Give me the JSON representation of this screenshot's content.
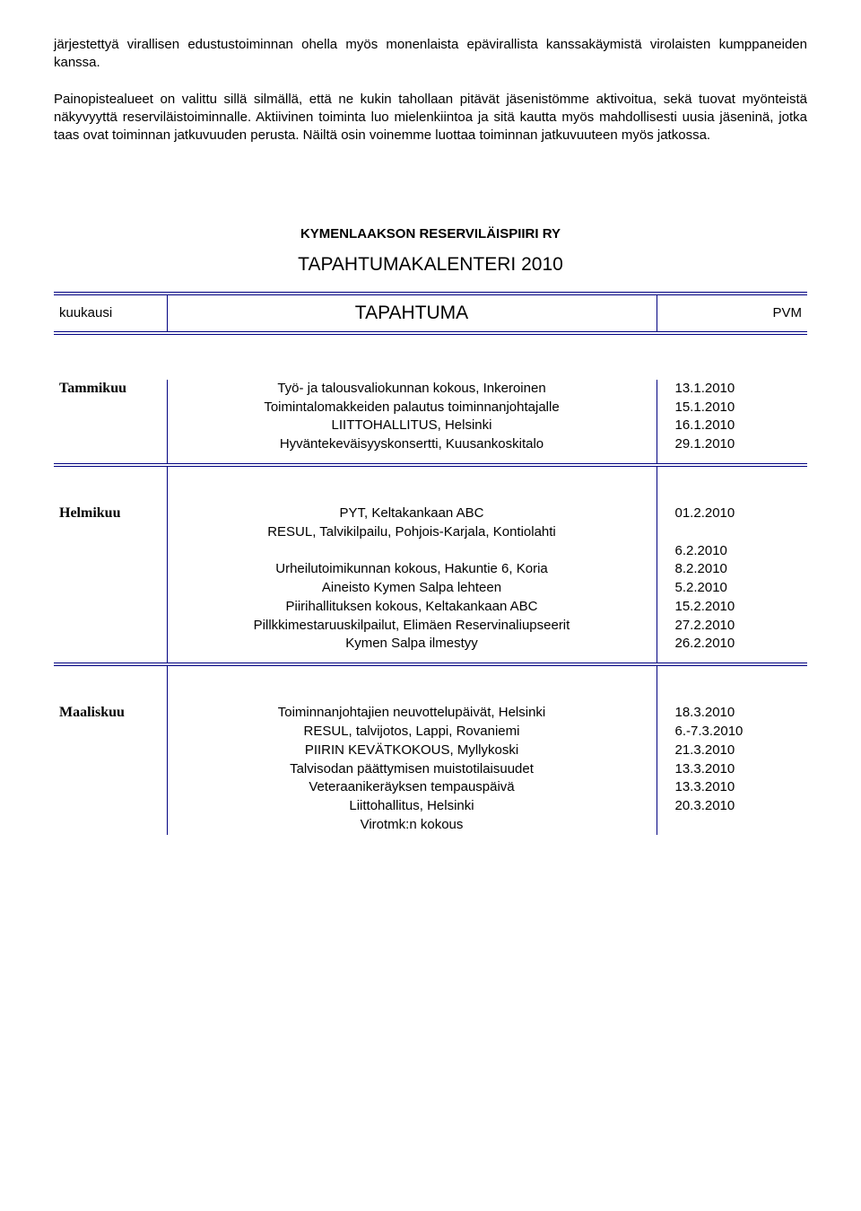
{
  "paragraph": "järjestettyä virallisen edustustoiminnan ohella myös monenlaista  epävirallista kanssakäymistä virolaisten kumppaneiden kanssa.\n\nPainopistealueet on valittu sillä silmällä, että ne kukin tahollaan pitävät jäsenistömme aktivoitua, sekä tuovat myönteistä näkyvyyttä reserviläistoiminnalle. Aktiivinen toiminta luo mielenkiintoa ja sitä kautta myös mahdollisesti uusia jäseninä, jotka taas ovat toiminnan jatkuvuuden perusta. Näiltä osin voinemme luottaa toiminnan jatkuvuuteen myös jatkossa.",
  "org_title": "KYMENLAAKSON RESERVILÄISPIIRI RY",
  "calendar_title": "TAPAHTUMAKALENTERI 2010",
  "header": {
    "month": "kuukausi",
    "event": "TAPAHTUMA",
    "date": "PVM"
  },
  "months": [
    {
      "name": "Tammikuu",
      "rows": [
        {
          "event": "Työ- ja talousvaliokunnan kokous, Inkeroinen",
          "date": "13.1.2010"
        },
        {
          "event": "Toimintalomakkeiden palautus toiminnanjohtajalle",
          "date": "15.1.2010"
        },
        {
          "event": "LIITTOHALLITUS, Helsinki",
          "date": "16.1.2010"
        },
        {
          "event": "Hyväntekeväisyyskonsertti, Kuusankoskitalo",
          "date": "29.1.2010"
        }
      ]
    },
    {
      "name": "Helmikuu",
      "rows": [
        {
          "event": "PYT, Keltakankaan ABC",
          "date": "01.2.2010"
        },
        {
          "event": "RESUL, Talvikilpailu, Pohjois-Karjala, Kontiolahti",
          "date": ""
        },
        {
          "event": "",
          "date": "6.2.2010"
        },
        {
          "event": "Urheilutoimikunnan kokous, Hakuntie 6, Koria",
          "date": "8.2.2010"
        },
        {
          "event": "Aineisto Kymen Salpa lehteen",
          "date": "5.2.2010"
        },
        {
          "event": "Piirihallituksen kokous, Keltakankaan ABC",
          "date": "15.2.2010"
        },
        {
          "event": "Pillkkimestaruuskilpailut, Elimäen Reservinaliupseerit",
          "date": "27.2.2010"
        },
        {
          "event": "Kymen Salpa ilmestyy",
          "date": "26.2.2010"
        }
      ]
    },
    {
      "name": "Maaliskuu",
      "rows": [
        {
          "event": "Toiminnanjohtajien neuvottelupäivät, Helsinki",
          "date": "18.3.2010"
        },
        {
          "event": "RESUL, talvijotos, Lappi, Rovaniemi",
          "date": "6.-7.3.2010"
        },
        {
          "event": "PIIRIN KEVÄTKOKOUS, Myllykoski",
          "date": "21.3.2010"
        },
        {
          "event": "Talvisodan päättymisen muistotilaisuudet",
          "date": "13.3.2010"
        },
        {
          "event": "Veteraanikeräyksen tempauspäivä",
          "date": "13.3.2010"
        },
        {
          "event": "Liittohallitus, Helsinki",
          "date": "20.3.2010"
        },
        {
          "event": "Virotmk:n kokous",
          "date": ""
        }
      ]
    }
  ]
}
